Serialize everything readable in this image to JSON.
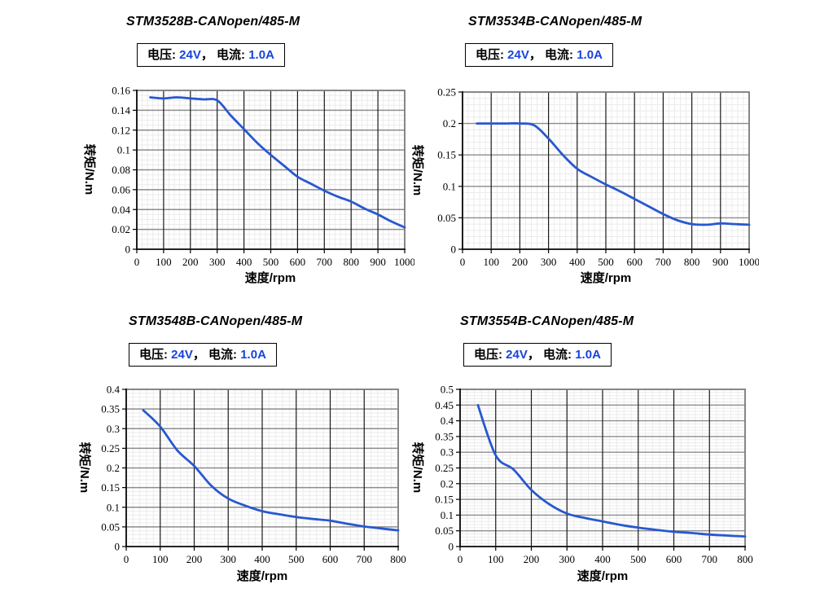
{
  "page": {
    "background": "#ffffff"
  },
  "colors": {
    "curve": "#2858d0",
    "spec_value_blue": "#1743e0",
    "text": "#000000",
    "grid_minor": "#ebebeb",
    "grid_major_h": "#8c8c8c",
    "grid_major_v": "#1a1a1a",
    "plot_border": "#7a7a7a",
    "axis": "#000000"
  },
  "chart_data": [
    {
      "type": "line",
      "title": "STM3528B-CANopen/485-M",
      "spec": {
        "voltage_label": "电压: ",
        "voltage_value": "24V",
        "separator": "， ",
        "current_label": "电流: ",
        "current_value": "1.0A"
      },
      "xlabel": "速度/rpm",
      "ylabel": "转矩/N.m",
      "xlim": [
        0,
        1000
      ],
      "ylim": [
        0,
        0.16
      ],
      "x_major": 100,
      "x_minor": 20,
      "y_major": 0.02,
      "y_minor": 0.005,
      "grid": "major-and-minor",
      "legend": false,
      "x_ticks": [
        "0",
        "100",
        "200",
        "300",
        "400",
        "500",
        "600",
        "700",
        "800",
        "900",
        "1000"
      ],
      "y_ticks": [
        "0",
        "0.02",
        "0.04",
        "0.06",
        "0.08",
        "0.1",
        "0.12",
        "0.14",
        "0.16"
      ],
      "series": [
        {
          "name": "torque-speed-curve",
          "x": [
            50,
            100,
            150,
            200,
            250,
            300,
            350,
            400,
            450,
            500,
            550,
            600,
            650,
            700,
            750,
            800,
            850,
            900,
            950,
            1000
          ],
          "y": [
            0.153,
            0.152,
            0.153,
            0.152,
            0.151,
            0.15,
            0.135,
            0.121,
            0.107,
            0.095,
            0.084,
            0.073,
            0.066,
            0.059,
            0.053,
            0.048,
            0.041,
            0.035,
            0.028,
            0.022
          ]
        }
      ]
    },
    {
      "type": "line",
      "title": "STM3534B-CANopen/485-M",
      "spec": {
        "voltage_label": "电压: ",
        "voltage_value": "24V",
        "separator": "， ",
        "current_label": "电流: ",
        "current_value": "1.0A"
      },
      "xlabel": "速度/rpm",
      "ylabel": "转矩/N.m",
      "xlim": [
        0,
        1000
      ],
      "ylim": [
        0,
        0.25
      ],
      "x_major": 100,
      "x_minor": 20,
      "y_major": 0.05,
      "y_minor": 0.01,
      "grid": "major-and-minor",
      "legend": false,
      "x_ticks": [
        "0",
        "100",
        "200",
        "300",
        "400",
        "500",
        "600",
        "700",
        "800",
        "900",
        "1000"
      ],
      "y_ticks": [
        "0",
        "0.05",
        "0.1",
        "0.15",
        "0.2",
        "0.25"
      ],
      "series": [
        {
          "name": "torque-speed-curve",
          "x": [
            50,
            100,
            150,
            200,
            250,
            300,
            350,
            400,
            450,
            500,
            550,
            600,
            650,
            700,
            750,
            800,
            850,
            900,
            950,
            1000
          ],
          "y": [
            0.2,
            0.2,
            0.2,
            0.2,
            0.197,
            0.176,
            0.15,
            0.128,
            0.115,
            0.103,
            0.092,
            0.08,
            0.068,
            0.056,
            0.046,
            0.04,
            0.039,
            0.041,
            0.04,
            0.039
          ]
        }
      ]
    },
    {
      "type": "line",
      "title": "STM3548B-CANopen/485-M",
      "spec": {
        "voltage_label": "电压: ",
        "voltage_value": "24V",
        "separator": "， ",
        "current_label": "电流: ",
        "current_value": "1.0A"
      },
      "xlabel": "速度/rpm",
      "ylabel": "转矩/N.m",
      "xlim": [
        0,
        800
      ],
      "ylim": [
        0,
        0.4
      ],
      "x_major": 100,
      "x_minor": 20,
      "y_major": 0.05,
      "y_minor": 0.01,
      "grid": "major-and-minor",
      "legend": false,
      "x_ticks": [
        "0",
        "100",
        "200",
        "300",
        "400",
        "500",
        "600",
        "700",
        "800"
      ],
      "y_ticks": [
        "0",
        "0.05",
        "0.1",
        "0.15",
        "0.2",
        "0.25",
        "0.3",
        "0.35",
        "0.4"
      ],
      "series": [
        {
          "name": "torque-speed-curve",
          "x": [
            50,
            100,
            150,
            200,
            250,
            300,
            350,
            400,
            450,
            500,
            550,
            600,
            650,
            700,
            750,
            800
          ],
          "y": [
            0.347,
            0.305,
            0.245,
            0.205,
            0.155,
            0.122,
            0.104,
            0.09,
            0.082,
            0.075,
            0.07,
            0.066,
            0.058,
            0.051,
            0.046,
            0.041
          ]
        }
      ]
    },
    {
      "type": "line",
      "title": "STM3554B-CANopen/485-M",
      "spec": {
        "voltage_label": "电压: ",
        "voltage_value": "24V",
        "separator": "， ",
        "current_label": "电流: ",
        "current_value": "1.0A"
      },
      "xlabel": "速度/rpm",
      "ylabel": "转矩/N.m",
      "xlim": [
        0,
        800
      ],
      "ylim": [
        0,
        0.5
      ],
      "x_major": 100,
      "x_minor": 20,
      "y_major": 0.05,
      "y_minor": 0.01,
      "grid": "major-and-minor",
      "legend": false,
      "x_ticks": [
        "0",
        "100",
        "200",
        "300",
        "400",
        "500",
        "600",
        "700",
        "800"
      ],
      "y_ticks": [
        "0",
        "0.05",
        "0.1",
        "0.15",
        "0.2",
        "0.25",
        "0.3",
        "0.35",
        "0.4",
        "0.45",
        "0.5"
      ],
      "series": [
        {
          "name": "torque-speed-curve",
          "x": [
            50,
            100,
            150,
            200,
            250,
            300,
            350,
            400,
            450,
            500,
            550,
            600,
            650,
            700,
            750,
            800
          ],
          "y": [
            0.45,
            0.29,
            0.245,
            0.18,
            0.135,
            0.105,
            0.091,
            0.08,
            0.069,
            0.06,
            0.053,
            0.047,
            0.043,
            0.038,
            0.035,
            0.032
          ]
        }
      ]
    }
  ]
}
